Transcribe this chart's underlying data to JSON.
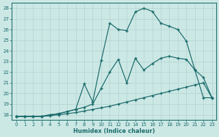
{
  "xlabel": "Humidex (Indice chaleur)",
  "bg_color": "#cce8e5",
  "line_color": "#1a6b6b",
  "grid_color": "#b8d8d5",
  "xlim": [
    -0.5,
    23.5
  ],
  "ylim": [
    17.5,
    28.5
  ],
  "yticks": [
    18,
    19,
    20,
    21,
    22,
    23,
    24,
    25,
    26,
    27,
    28
  ],
  "xticks": [
    0,
    1,
    2,
    3,
    4,
    5,
    6,
    7,
    8,
    9,
    10,
    11,
    12,
    13,
    14,
    15,
    16,
    17,
    18,
    19,
    20,
    21,
    22,
    23
  ],
  "line1_x": [
    0,
    1,
    2,
    3,
    4,
    5,
    6,
    7,
    8,
    9,
    10,
    11,
    12,
    13,
    14,
    15,
    16,
    17,
    18,
    19,
    20,
    21,
    22,
    23
  ],
  "line1_y": [
    17.85,
    17.85,
    17.85,
    17.85,
    17.9,
    18.0,
    18.1,
    18.2,
    18.35,
    18.5,
    18.65,
    18.8,
    19.0,
    19.2,
    19.4,
    19.6,
    19.8,
    20.0,
    20.2,
    20.4,
    20.6,
    20.8,
    21.0,
    19.6
  ],
  "line2_x": [
    0,
    1,
    2,
    3,
    4,
    5,
    6,
    7,
    8,
    9,
    10,
    11,
    12,
    13,
    14,
    15,
    16,
    17,
    18,
    19,
    20,
    21,
    22,
    23
  ],
  "line2_y": [
    17.85,
    17.85,
    17.85,
    17.85,
    18.0,
    18.1,
    18.3,
    18.5,
    18.7,
    19.0,
    20.5,
    22.0,
    23.2,
    21.0,
    23.3,
    22.2,
    22.8,
    23.3,
    23.5,
    23.3,
    23.2,
    22.2,
    19.6,
    19.6
  ],
  "line3_x": [
    0,
    1,
    2,
    3,
    4,
    5,
    6,
    7,
    8,
    9,
    10,
    11,
    12,
    13,
    14,
    15,
    16,
    17,
    18,
    19,
    20,
    21,
    22,
    23
  ],
  "line3_y": [
    17.85,
    17.85,
    17.85,
    17.85,
    18.0,
    18.1,
    18.3,
    18.5,
    20.9,
    19.2,
    23.1,
    26.6,
    26.0,
    25.9,
    27.65,
    28.0,
    27.7,
    26.6,
    26.3,
    26.0,
    24.9,
    22.2,
    21.5,
    19.6
  ]
}
